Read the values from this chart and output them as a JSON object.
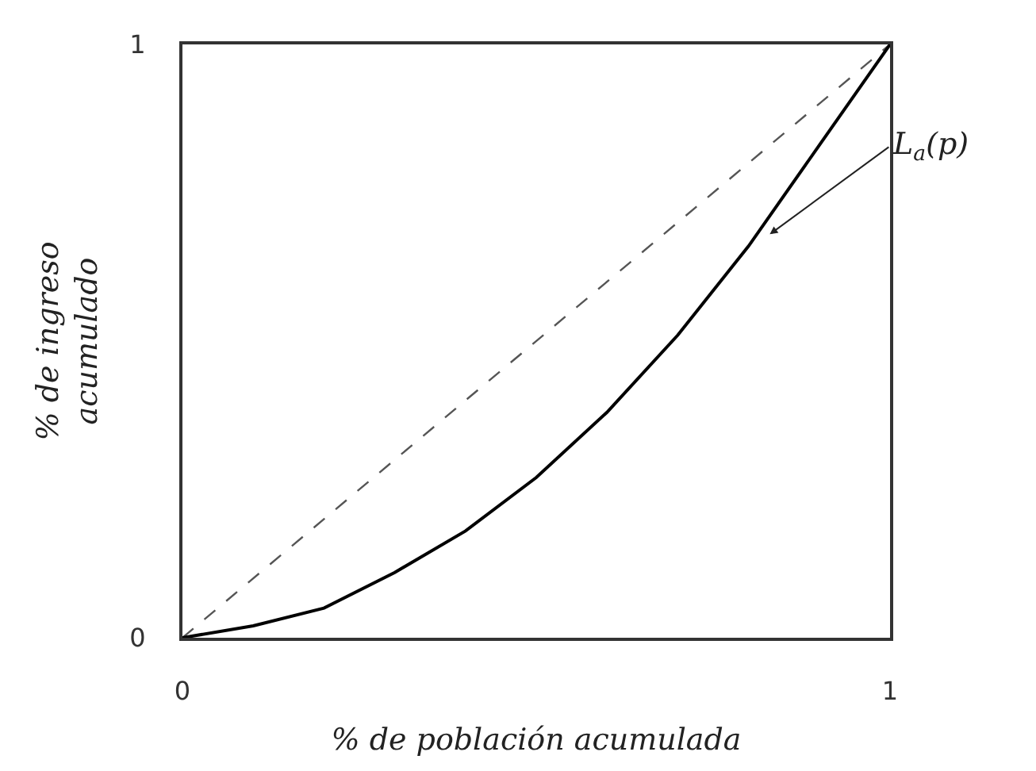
{
  "chart_data": {
    "type": "line",
    "xlabel": "% de población acumulada",
    "ylabel": "% de ingreso acumulado",
    "xlim": [
      0,
      1
    ],
    "ylim": [
      0,
      1
    ],
    "xticks": [
      0,
      1
    ],
    "yticks": [
      0,
      1
    ],
    "marker": "none",
    "series": [
      {
        "x": [
          0,
          1
        ],
        "values": [
          0,
          1
        ],
        "color": "#555555",
        "line_style": "dashed"
      },
      {
        "x": [
          0,
          0.1,
          0.2,
          0.3,
          0.4,
          0.5,
          0.6,
          0.7,
          0.8,
          0.9,
          1
        ],
        "values": [
          0,
          0.02,
          0.05,
          0.11,
          0.18,
          0.27,
          0.38,
          0.51,
          0.66,
          0.83,
          1
        ],
        "color": "#000000",
        "line_style": "solid"
      }
    ],
    "annotations": [
      "L$_{a}$(p)"
    ]
  }
}
